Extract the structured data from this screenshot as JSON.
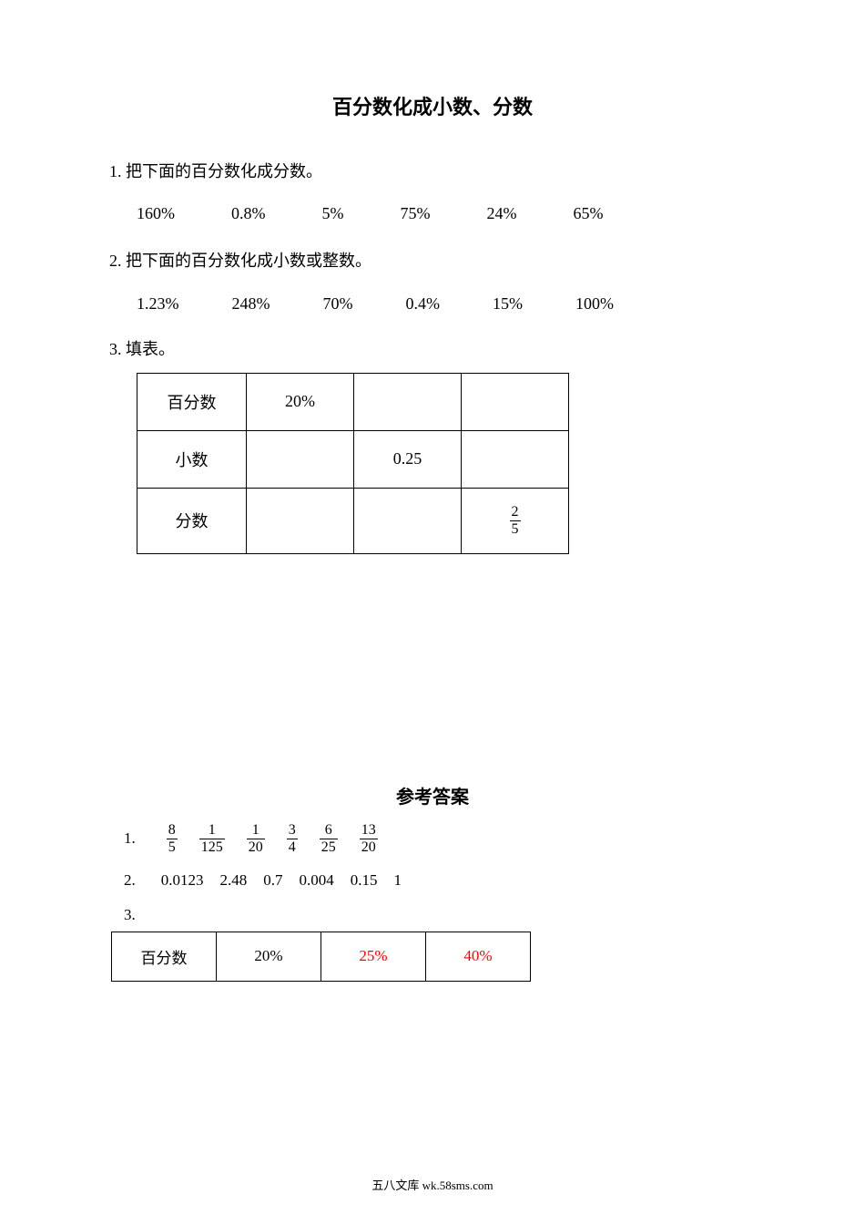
{
  "title": "百分数化成小数、分数",
  "q1": {
    "label": "1. 把下面的百分数化成分数。",
    "values": [
      "160%",
      "0.8%",
      "5%",
      "75%",
      "24%",
      "65%"
    ]
  },
  "q2": {
    "label": "2. 把下面的百分数化成小数或整数。",
    "values": [
      "1.23%",
      "248%",
      "70%",
      "0.4%",
      "15%",
      "100%"
    ]
  },
  "q3": {
    "label": "3. 填表。",
    "table": {
      "rows": [
        {
          "label": "百分数",
          "c1": "20%",
          "c2": "",
          "c3": ""
        },
        {
          "label": "小数",
          "c1": "",
          "c2": "0.25",
          "c3": ""
        },
        {
          "label": "分数",
          "c1": "",
          "c2": "",
          "c3_frac": {
            "num": "2",
            "den": "5"
          }
        }
      ]
    }
  },
  "answers": {
    "title": "参考答案",
    "a1": {
      "num": "1.",
      "fractions": [
        {
          "num": "8",
          "den": "5"
        },
        {
          "num": "1",
          "den": "125"
        },
        {
          "num": "1",
          "den": "20"
        },
        {
          "num": "3",
          "den": "4"
        },
        {
          "num": "6",
          "den": "25"
        },
        {
          "num": "13",
          "den": "20"
        }
      ]
    },
    "a2": {
      "num": "2.",
      "values": [
        "0.0123",
        "2.48",
        "0.7",
        "0.004",
        "0.15",
        "1"
      ]
    },
    "a3": {
      "num": "3.",
      "table": {
        "row1": {
          "label": "百分数",
          "c1": "20%",
          "c2": "25%",
          "c3": "40%",
          "c2_filled": true,
          "c3_filled": true
        }
      }
    }
  },
  "footer": "五八文库 wk.58sms.com",
  "colors": {
    "text": "#000000",
    "background": "#ffffff",
    "filled_answer": "#ff0000",
    "border": "#000000"
  },
  "typography": {
    "title_fontsize": 22,
    "body_fontsize": 18,
    "answer_fontsize": 17,
    "footer_fontsize": 13,
    "font_family": "SimSun"
  }
}
